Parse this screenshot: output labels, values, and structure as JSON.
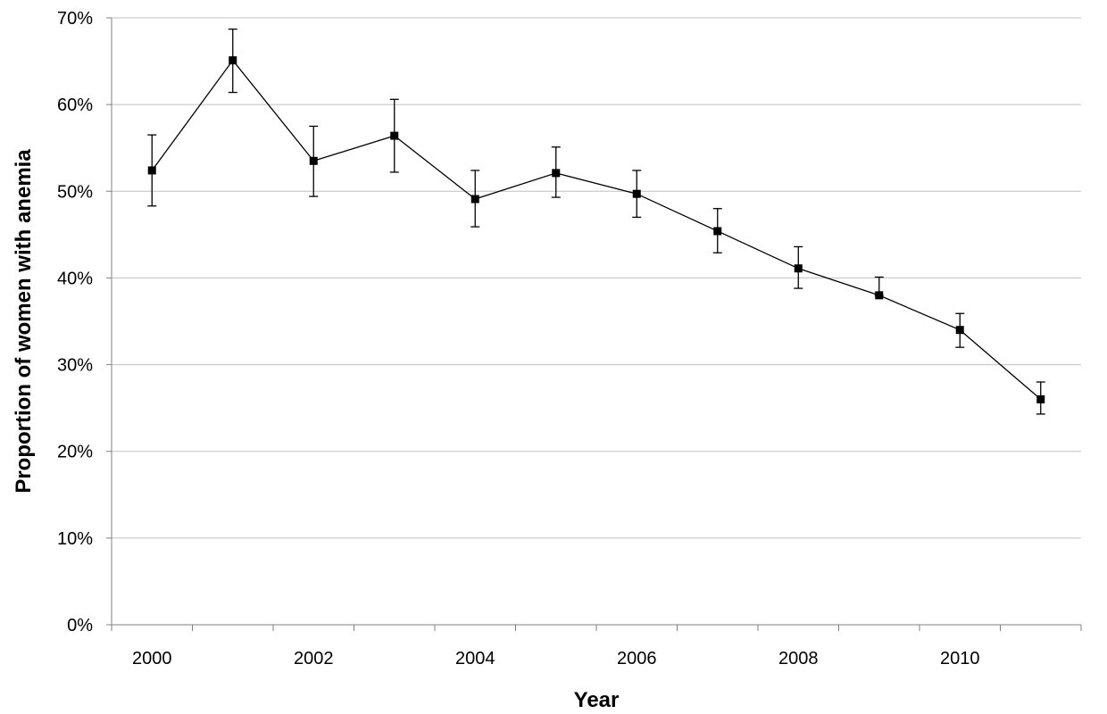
{
  "chart_data": {
    "type": "line",
    "title": "",
    "xlabel": "Year",
    "ylabel": "Proportion of women with anemia",
    "x": [
      2000,
      2001,
      2002,
      2003,
      2004,
      2005,
      2006,
      2007,
      2008,
      2009,
      2010,
      2011
    ],
    "x_tick_labels": [
      "2000",
      "2002",
      "2004",
      "2006",
      "2008",
      "2010"
    ],
    "y_tick_labels": [
      "0%",
      "10%",
      "20%",
      "30%",
      "40%",
      "50%",
      "60%",
      "70%"
    ],
    "ylim": [
      0,
      70
    ],
    "grid": "horizontal",
    "legend": "none",
    "series": [
      {
        "values": [
          52.4,
          65.1,
          53.5,
          56.4,
          49.1,
          52.1,
          49.7,
          45.4,
          41.1,
          38.0,
          34.0,
          26.0
        ],
        "error_low": [
          48.3,
          61.4,
          49.4,
          52.2,
          45.9,
          49.3,
          47.0,
          42.9,
          38.8,
          38.0,
          32.0,
          24.3
        ],
        "error_high": [
          56.5,
          68.7,
          57.5,
          60.6,
          52.4,
          55.1,
          52.4,
          48.0,
          43.6,
          40.1,
          35.9,
          28.0
        ],
        "color": "#000000",
        "marker": "square"
      }
    ],
    "colors": {
      "line": "#000000",
      "grid": "#c0c0c0",
      "axis": "#808080"
    }
  }
}
